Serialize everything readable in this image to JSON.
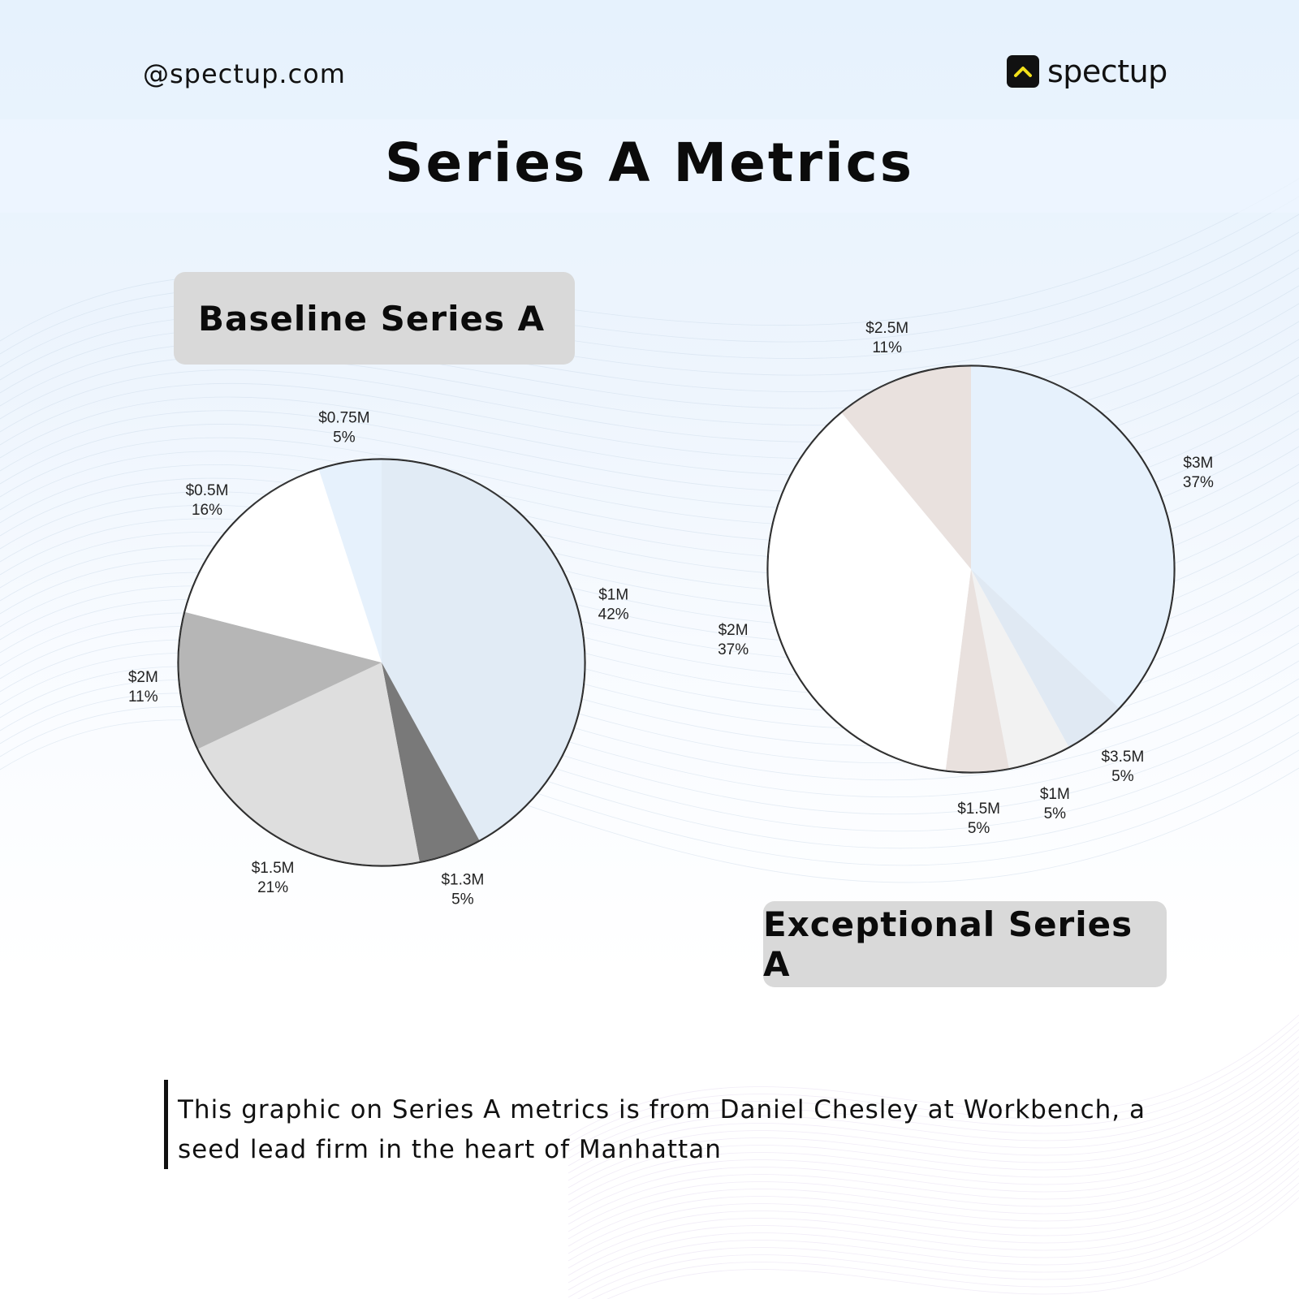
{
  "header": {
    "handle": "@spectup.com",
    "brand": "spectup",
    "brand_icon": "chevron-up-icon",
    "title": "Series A Metrics"
  },
  "pills": {
    "baseline": "Baseline Series A",
    "exceptional": "Exceptional Series A"
  },
  "footer": {
    "quote": "This graphic on Series A metrics is from Daniel Chesley at Workbench, a seed lead firm in the heart of Manhattan"
  },
  "colors": {
    "accent": "#f2e01a",
    "text": "#0c0c0c",
    "pill": "#d9d9d9"
  },
  "chart_data": [
    {
      "type": "pie",
      "title": "Baseline Series A",
      "slices": [
        {
          "label": "$1M",
          "percent": 42,
          "color": "#e1ebf5"
        },
        {
          "label": "$1.3M",
          "percent": 5,
          "color": "#797979"
        },
        {
          "label": "$1.5M",
          "percent": 21,
          "color": "#dedede"
        },
        {
          "label": "$2M",
          "percent": 11,
          "color": "#b6b6b6"
        },
        {
          "label": "$0.5M",
          "percent": 16,
          "color": "#ffffff"
        },
        {
          "label": "$0.75M",
          "percent": 5,
          "color": "#e6f1fc"
        }
      ]
    },
    {
      "type": "pie",
      "title": "Exceptional Series A",
      "slices": [
        {
          "label": "$3M",
          "percent": 37,
          "color": "#e6f1fc"
        },
        {
          "label": "$3.5M",
          "percent": 5,
          "color": "#e0e9f3"
        },
        {
          "label": "$1M",
          "percent": 5,
          "color": "#f2f2f2"
        },
        {
          "label": "$1.5M",
          "percent": 5,
          "color": "#e9e1de"
        },
        {
          "label": "$2M",
          "percent": 37,
          "color": "#ffffff"
        },
        {
          "label": "$2.5M",
          "percent": 11,
          "color": "#e9e1de"
        }
      ]
    }
  ]
}
